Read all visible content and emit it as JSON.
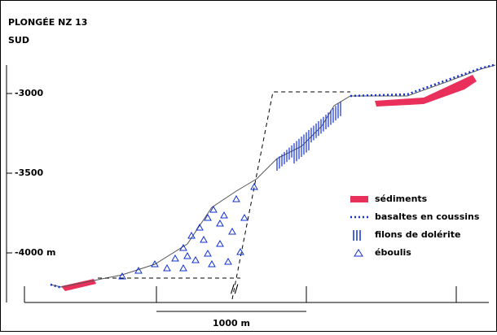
{
  "header": {
    "title": "PLONGÉE NZ 13",
    "subtitle": "SUD"
  },
  "depth_labels": [
    "-3000",
    "-3500",
    "-4000 m"
  ],
  "legend": [
    "sédiments",
    "basaltes en coussins",
    "filons de dolérite",
    "éboulis"
  ],
  "scale_label": "1000 m"
}
